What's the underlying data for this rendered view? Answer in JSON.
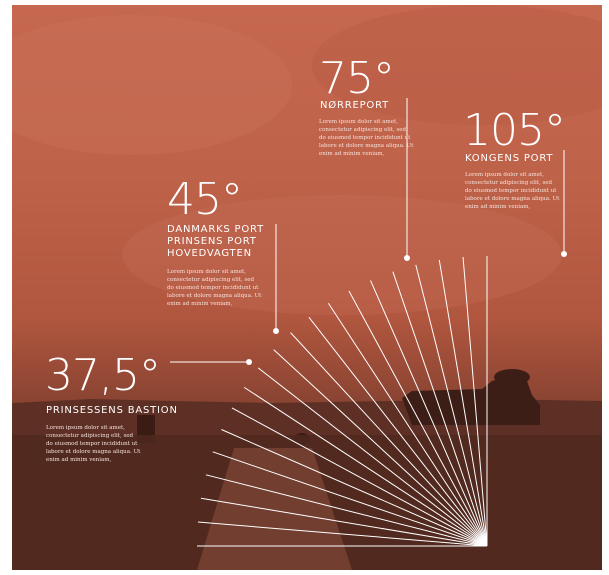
{
  "annotations": [
    {
      "id": "nordre",
      "angle": "75°",
      "lines": [
        "NØRREPORT"
      ],
      "text": "Lorem ipsum dolor sit amet, consectetur adipiscing elit, sed do eiusmod tempor incididunt ut labore et dolore magna aliqua. Ut enim ad minim veniam,"
    },
    {
      "id": "kongens",
      "angle": "105°",
      "lines": [
        "KONGENS PORT"
      ],
      "text": "Lorem ipsum dolor sit amet, consectetur adipiscing elit, sed do eiusmod tempor incididunt ut labore et dolore magna aliqua. Ut enim ad minim veniam,"
    },
    {
      "id": "danmarks",
      "angle": "45°",
      "lines": [
        "DANMARKS PORT",
        "PRINSENS PORT",
        "HOVEDVAGTEN"
      ],
      "text": "Lorem ipsum dolor sit amet, consectetur adipiscing elit, sed do eiusmod tempor incididunt ut labore et dolore magna aliqua. Ut enim ad minim veniam,"
    },
    {
      "id": "prinsessens",
      "angle": "37,5°",
      "lines": [
        "PRINSESSENS BASTION"
      ],
      "text": "Lorem ipsum dolor sit amet, consectetur adipiscing elit, sed do eiusmod tempor incididunt ut labore et dolore magna aliqua. Ut enim ad minim veniam,"
    }
  ],
  "colors": {
    "background": "#c06450",
    "ground": "#4a2519",
    "lines": "#ffffff"
  },
  "fan": {
    "ray_count": 20
  }
}
